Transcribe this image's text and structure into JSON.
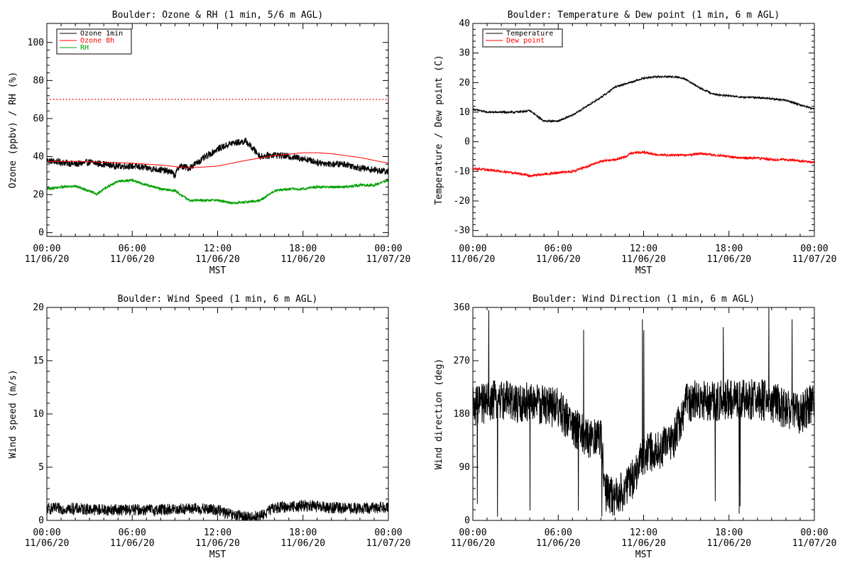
{
  "chart_data": [
    {
      "id": "ozone_rh",
      "type": "line",
      "title": "Boulder: Ozone & RH (1 min, 5/6 m AGL)",
      "xlabel": "MST",
      "ylabel": "Ozone (ppbv) / RH (%)",
      "xlim": [
        0,
        24
      ],
      "ylim": [
        -2,
        110
      ],
      "x_ticks": [
        {
          "time": "00:00",
          "date": "11/06/20"
        },
        {
          "time": "06:00",
          "date": "11/06/20"
        },
        {
          "time": "12:00",
          "date": "11/06/20"
        },
        {
          "time": "18:00",
          "date": "11/06/20"
        },
        {
          "time": "00:00",
          "date": "11/07/20"
        }
      ],
      "y_ticks": [
        0,
        20,
        40,
        60,
        80,
        100
      ],
      "legend_position": "top-left",
      "reference_lines": [
        {
          "y": 70,
          "color": "#ff0000",
          "style": "dotted"
        }
      ],
      "series": [
        {
          "name": "Ozone 1min",
          "color": "#000000",
          "noise": 1.8,
          "x": [
            0,
            1,
            2,
            3,
            4,
            5,
            6,
            7,
            8,
            8.7,
            9,
            9.3,
            10,
            11,
            12,
            13,
            14,
            15,
            16,
            17,
            18,
            19,
            20,
            21,
            22,
            23,
            24
          ],
          "y": [
            38,
            37,
            36,
            37,
            36,
            35,
            35,
            34,
            33,
            32,
            30,
            35,
            34,
            39,
            44,
            47,
            48,
            40,
            41,
            40,
            39,
            37,
            36,
            36,
            34,
            33,
            32
          ]
        },
        {
          "name": "Ozone 8h",
          "color": "#ff0000",
          "noise": 0,
          "x": [
            0,
            2,
            4,
            6,
            8,
            10,
            12,
            14,
            16,
            18,
            19,
            20,
            22,
            24
          ],
          "y": [
            37.5,
            37.5,
            37,
            36.5,
            35.5,
            34,
            35,
            38,
            40.5,
            42,
            42,
            41.5,
            39.5,
            36.5
          ]
        },
        {
          "name": "RH",
          "color": "#00a000",
          "noise": 0.7,
          "x": [
            0,
            1,
            2,
            3,
            3.5,
            4,
            5,
            6,
            7,
            8,
            9,
            10,
            11,
            12,
            13,
            14,
            15,
            16,
            17,
            18,
            19,
            20,
            21,
            22,
            23,
            24
          ],
          "y": [
            23,
            24,
            24.5,
            22,
            20,
            23,
            27,
            27.5,
            25,
            23,
            22,
            17,
            17,
            17,
            15.5,
            16,
            17,
            22,
            23,
            23,
            24,
            24,
            24,
            25,
            25,
            27.5
          ]
        }
      ]
    },
    {
      "id": "temp_dew",
      "type": "line",
      "title": "Boulder: Temperature & Dew point (1 min, 6 m AGL)",
      "xlabel": "MST",
      "ylabel": "Temperature / Dew point (C)",
      "xlim": [
        0,
        24
      ],
      "ylim": [
        -32,
        40
      ],
      "x_ticks": [
        {
          "time": "00:00",
          "date": "11/06/20"
        },
        {
          "time": "06:00",
          "date": "11/06/20"
        },
        {
          "time": "12:00",
          "date": "11/06/20"
        },
        {
          "time": "18:00",
          "date": "11/06/20"
        },
        {
          "time": "00:00",
          "date": "11/07/20"
        }
      ],
      "y_ticks": [
        -30,
        -20,
        -10,
        0,
        10,
        20,
        30,
        40
      ],
      "legend_position": "top-left",
      "series": [
        {
          "name": "Temperature",
          "color": "#000000",
          "noise": 0.3,
          "x": [
            0,
            1,
            2,
            3,
            4,
            5,
            6,
            7,
            8,
            9,
            10,
            11,
            12,
            13,
            14,
            14.8,
            16,
            17,
            18,
            19,
            20,
            21,
            22,
            23,
            24
          ],
          "y": [
            11,
            10,
            10,
            10,
            10.5,
            7,
            7,
            9,
            12,
            15,
            18.5,
            20,
            21.5,
            22,
            22,
            21.5,
            18,
            16,
            15.5,
            15,
            15,
            14.5,
            14,
            12.5,
            11
          ]
        },
        {
          "name": "Dew point",
          "color": "#ff0000",
          "noise": 0.4,
          "x": [
            0,
            1,
            2,
            3,
            4,
            5,
            6,
            7,
            8,
            9,
            10,
            10.8,
            11,
            12,
            13,
            14,
            15,
            16,
            17,
            18,
            19,
            20,
            21,
            22,
            23,
            24
          ],
          "y": [
            -9,
            -9.5,
            -10,
            -10.5,
            -11.5,
            -11,
            -10.5,
            -10,
            -8.5,
            -6.5,
            -6,
            -5,
            -4,
            -3.5,
            -4.5,
            -4.5,
            -4.5,
            -4,
            -4.5,
            -5,
            -5.5,
            -5.5,
            -6,
            -6,
            -6.5,
            -7
          ]
        }
      ]
    },
    {
      "id": "wind_speed",
      "type": "line",
      "title": "Boulder: Wind Speed (1 min, 6 m AGL)",
      "xlabel": "MST",
      "ylabel": "Wind speed (m/s)",
      "xlim": [
        0,
        24
      ],
      "ylim": [
        0,
        20
      ],
      "x_ticks": [
        {
          "time": "00:00",
          "date": "11/06/20"
        },
        {
          "time": "06:00",
          "date": "11/06/20"
        },
        {
          "time": "12:00",
          "date": "11/06/20"
        },
        {
          "time": "18:00",
          "date": "11/06/20"
        },
        {
          "time": "00:00",
          "date": "11/07/20"
        }
      ],
      "y_ticks": [
        0,
        5,
        10,
        15,
        20
      ],
      "series": [
        {
          "color": "#000000",
          "noise": 0.55,
          "x": [
            0,
            2,
            4,
            6,
            8,
            10,
            12,
            13,
            14,
            15,
            16,
            18,
            20,
            22,
            24
          ],
          "y": [
            1.1,
            1.1,
            1.0,
            1.0,
            1.0,
            1.1,
            1.0,
            0.5,
            0.3,
            0.4,
            1.2,
            1.4,
            1.2,
            1.1,
            1.3
          ]
        }
      ]
    },
    {
      "id": "wind_dir",
      "type": "line",
      "title": "Boulder: Wind Direction (1 min, 6 m AGL)",
      "xlabel": "MST",
      "ylabel": "Wind direction (deg)",
      "xlim": [
        0,
        24
      ],
      "ylim": [
        0,
        360
      ],
      "x_ticks": [
        {
          "time": "00:00",
          "date": "11/06/20"
        },
        {
          "time": "06:00",
          "date": "11/06/20"
        },
        {
          "time": "12:00",
          "date": "11/06/20"
        },
        {
          "time": "18:00",
          "date": "11/06/20"
        },
        {
          "time": "00:00",
          "date": "11/07/20"
        }
      ],
      "y_ticks": [
        0,
        90,
        180,
        270,
        360
      ],
      "y_tick_labels": [
        "0",
        "90",
        "180",
        "270",
        "360"
      ],
      "series": [
        {
          "color": "#000000",
          "noise": 35,
          "x": [
            0,
            1,
            2,
            3,
            4,
            5,
            6,
            7,
            8,
            9,
            9.3,
            10,
            11,
            12,
            13,
            14,
            15,
            16,
            17,
            18,
            19,
            20,
            21,
            22,
            23,
            24
          ],
          "y": [
            190,
            200,
            205,
            195,
            200,
            195,
            190,
            160,
            140,
            140,
            45,
            40,
            60,
            110,
            120,
            130,
            200,
            205,
            200,
            205,
            205,
            205,
            200,
            190,
            180,
            200
          ]
        }
      ]
    }
  ]
}
